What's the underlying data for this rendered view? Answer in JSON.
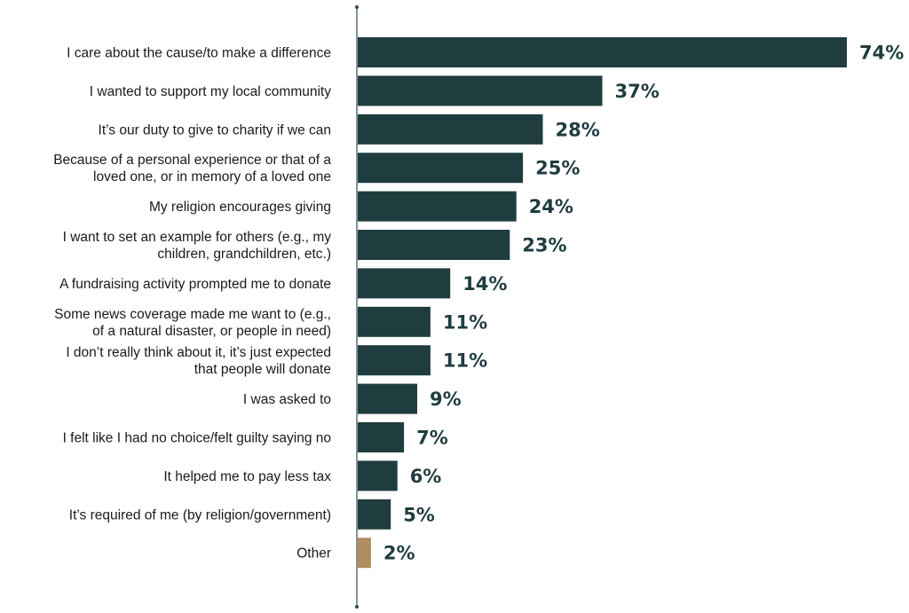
{
  "chart_data": {
    "type": "bar",
    "orientation": "horizontal",
    "title": "",
    "xlabel": "",
    "ylabel": "",
    "xlim": [
      0,
      74
    ],
    "grid": false,
    "legend": "none",
    "colors": {
      "primary": "#1f3d3f",
      "highlight": "#b08d5e",
      "axis": "#2f4a57"
    },
    "categories": [
      [
        "I care about the cause/to make a difference"
      ],
      [
        "I wanted to support my local community"
      ],
      [
        "It’s our duty to give to charity if we can"
      ],
      [
        "Because of a personal experience or that of a",
        "loved one, or in memory of a loved one"
      ],
      [
        "My religion encourages giving"
      ],
      [
        "I want to set an example for others (e.g., my",
        "children, grandchildren, etc.)"
      ],
      [
        "A fundraising activity prompted me to donate"
      ],
      [
        "Some news coverage made me want to (e.g.,",
        "of a natural disaster, or people in need)"
      ],
      [
        "I don’t really think about it, it’s just expected",
        "that people will donate"
      ],
      [
        "I was asked to"
      ],
      [
        "I felt like I had no choice/felt guilty saying no"
      ],
      [
        "It helped me to pay less tax"
      ],
      [
        "It’s required of me (by religion/government)"
      ],
      [
        "Other"
      ]
    ],
    "values": [
      74,
      37,
      28,
      25,
      24,
      23,
      14,
      11,
      11,
      9,
      7,
      6,
      5,
      2
    ],
    "value_labels": [
      "74%",
      "37%",
      "28%",
      "25%",
      "24%",
      "23%",
      "14%",
      "11%",
      "11%",
      "9%",
      "7%",
      "6%",
      "5%",
      "2%"
    ],
    "highlighted_categories": [
      "Other"
    ]
  }
}
